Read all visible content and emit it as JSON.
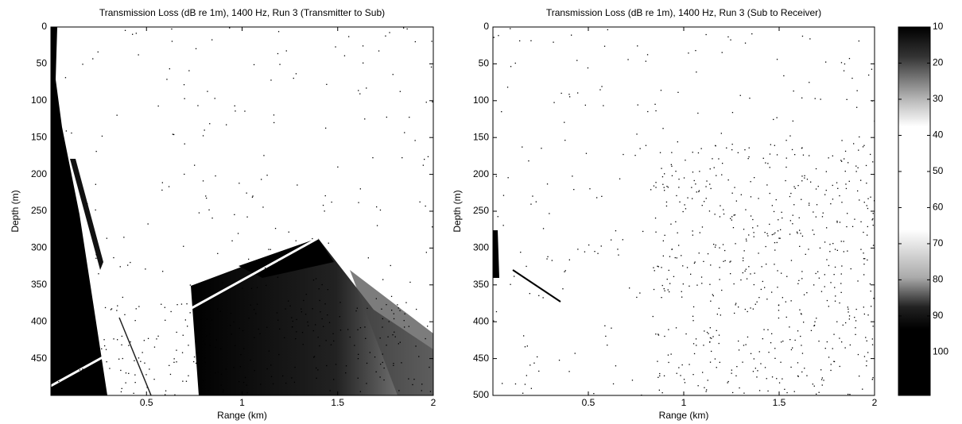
{
  "chart_data": [
    {
      "type": "heatmap",
      "title": "Transmission Loss (dB re 1m), 1400 Hz, Run 3 (Transmitter to Sub)",
      "x_label": "Range (km)",
      "y_label": "Depth (m)",
      "xlim": [
        0,
        2
      ],
      "xticks": [
        0.5,
        1,
        1.5,
        2
      ],
      "ylim": [
        0,
        500
      ],
      "yticks": [
        0,
        50,
        100,
        150,
        200,
        250,
        300,
        350,
        400,
        450
      ],
      "y_inverted": true
    },
    {
      "type": "heatmap",
      "title": "Transmission Loss (dB re 1m), 1400 Hz, Run 3 (Sub to Receiver)",
      "x_label": "Range (km)",
      "y_label": "Depth (m)",
      "xlim": [
        0,
        2
      ],
      "xticks": [
        0.5,
        1,
        1.5,
        2
      ],
      "ylim": [
        0,
        500
      ],
      "yticks": [
        0,
        50,
        100,
        150,
        200,
        250,
        300,
        350,
        400,
        450,
        500
      ],
      "y_inverted": true
    },
    {
      "type": "colorbar",
      "clim": [
        10,
        112
      ],
      "cticks": [
        10,
        20,
        30,
        40,
        50,
        60,
        70,
        80,
        90,
        100
      ]
    }
  ]
}
